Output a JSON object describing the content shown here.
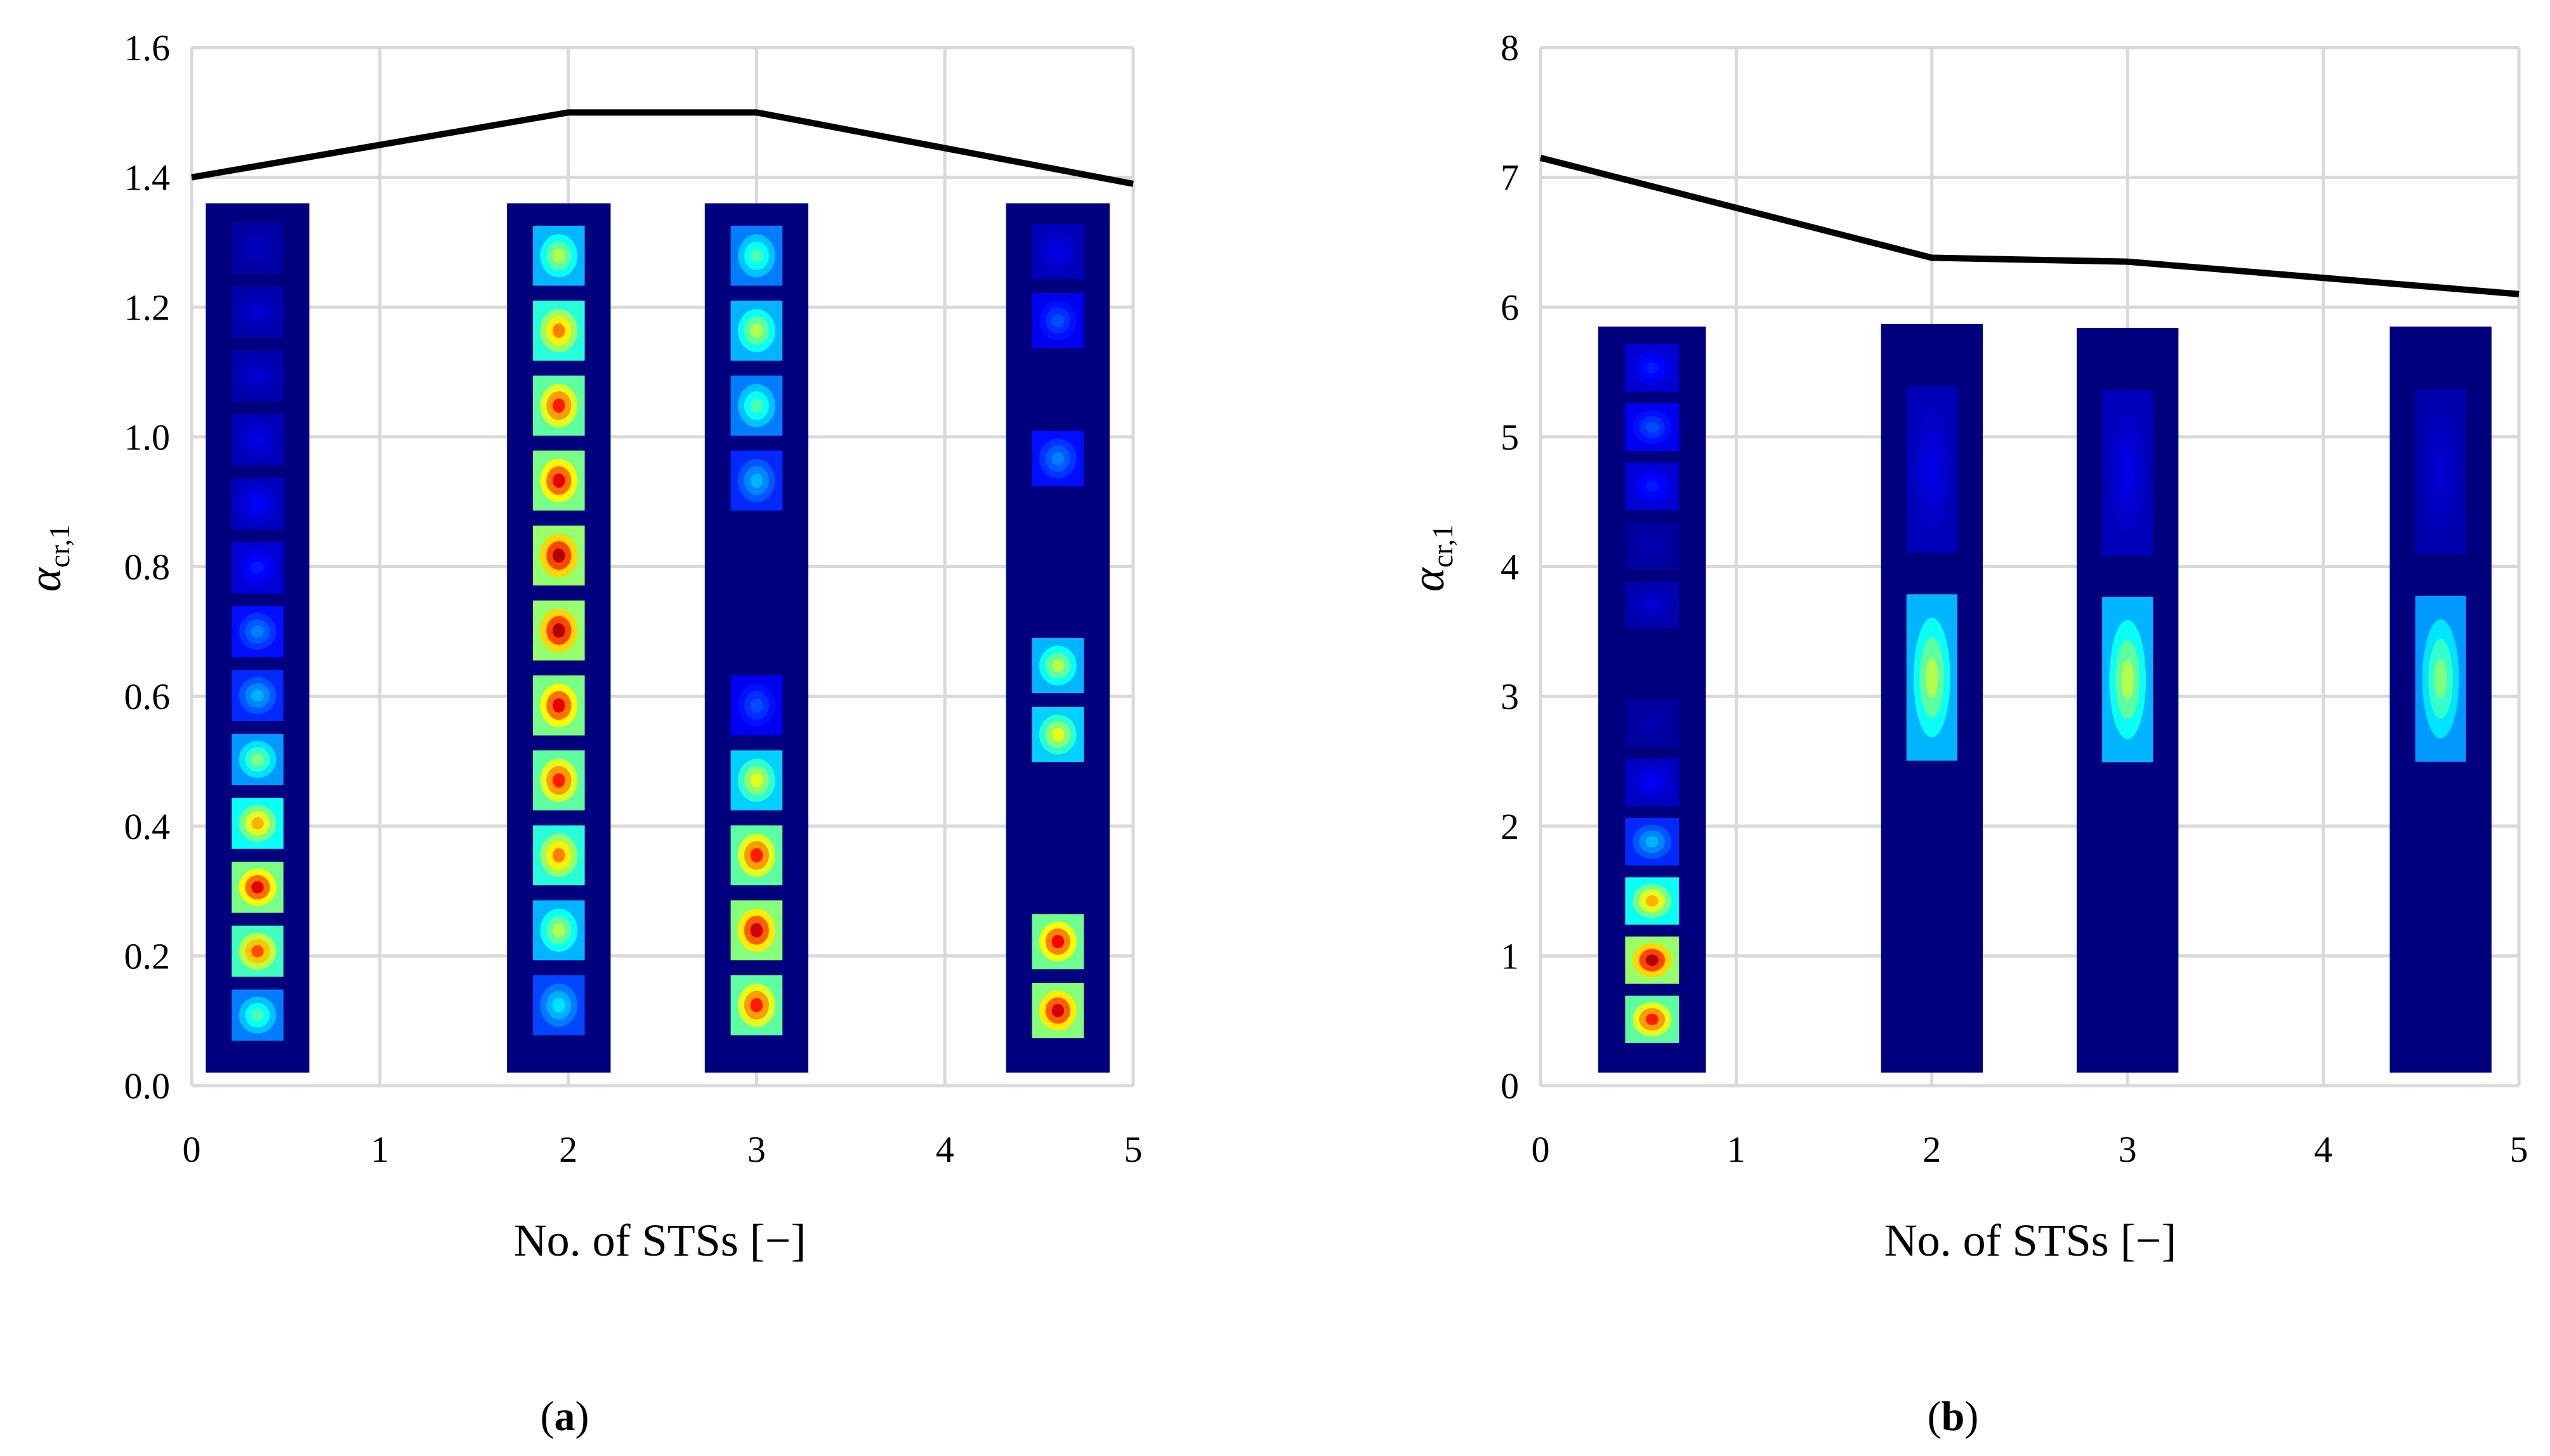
{
  "chart_data": [
    {
      "id": "a",
      "type": "line",
      "panel_label_letter": "a",
      "panel_label_open": "(",
      "panel_label_close": ")",
      "xlabel": "No. of STSs [−]",
      "ylabel_symbol": "α",
      "ylabel_subscript": "cr,1",
      "xlim": [
        0,
        5
      ],
      "ylim": [
        0,
        1.6
      ],
      "xticks": [
        "0",
        "1",
        "2",
        "3",
        "4",
        "5"
      ],
      "yticks": [
        "0.0",
        "0.2",
        "0.4",
        "0.6",
        "0.8",
        "1.0",
        "1.2",
        "1.4",
        "1.6"
      ],
      "series": [
        {
          "name": "alpha_cr,1",
          "x": [
            0,
            2,
            3,
            5
          ],
          "y": [
            1.4,
            1.5,
            1.5,
            1.39
          ]
        }
      ],
      "mode_shape_insets": [
        {
          "x_center": 0.35,
          "y_bottom": 0.02,
          "y_top": 1.36,
          "width": 0.55,
          "intensity": [
            0.45,
            0.8,
            0.9,
            0.7,
            0.5,
            0.3,
            0.25,
            0.15,
            0.12,
            0.1,
            0.08,
            0.08,
            0.06
          ]
        },
        {
          "x_center": 1.95,
          "y_bottom": 0.02,
          "y_top": 1.36,
          "width": 0.55,
          "intensity": [
            0.35,
            0.55,
            0.75,
            0.85,
            0.9,
            0.95,
            0.95,
            0.9,
            0.85,
            0.75,
            0.55
          ]
        },
        {
          "x_center": 3.0,
          "y_bottom": 0.02,
          "y_top": 1.36,
          "width": 0.55,
          "intensity": [
            0.85,
            0.92,
            0.85,
            0.6,
            0.2,
            0.0,
            0.0,
            0.3,
            0.45,
            0.55,
            0.45
          ]
        },
        {
          "x_center": 4.6,
          "y_bottom": 0.02,
          "y_top": 1.36,
          "width": 0.55,
          "intensity": [
            0.92,
            0.88,
            0.0,
            0.0,
            0.6,
            0.55,
            0.0,
            0.0,
            0.25,
            0.0,
            0.2,
            0.1
          ]
        }
      ]
    },
    {
      "id": "b",
      "type": "line",
      "panel_label_letter": "b",
      "panel_label_open": "(",
      "panel_label_close": ")",
      "xlabel": "No. of STSs [−]",
      "ylabel_symbol": "α",
      "ylabel_subscript": "cr,1",
      "xlim": [
        0,
        5
      ],
      "ylim": [
        0,
        8
      ],
      "xticks": [
        "0",
        "1",
        "2",
        "3",
        "4",
        "5"
      ],
      "yticks": [
        "0",
        "1",
        "2",
        "3",
        "4",
        "5",
        "6",
        "7",
        "8"
      ],
      "series": [
        {
          "name": "alpha_cr,1",
          "x": [
            0,
            2,
            3,
            5
          ],
          "y": [
            7.15,
            6.38,
            6.35,
            6.1
          ]
        }
      ],
      "mode_shape_insets": [
        {
          "x_center": 0.57,
          "y_bottom": 0.1,
          "y_top": 5.85,
          "width": 0.55,
          "intensity": [
            0.85,
            0.95,
            0.7,
            0.3,
            0.12,
            0.05,
            0.0,
            0.08,
            0.05,
            0.15,
            0.2,
            0.15
          ]
        },
        {
          "x_center": 2.0,
          "y_bottom": 0.1,
          "y_top": 5.87,
          "width": 0.52,
          "intensity": [
            0.0,
            0.55,
            0.1
          ]
        },
        {
          "x_center": 3.0,
          "y_bottom": 0.1,
          "y_top": 5.84,
          "width": 0.52,
          "intensity": [
            0.0,
            0.55,
            0.1
          ]
        },
        {
          "x_center": 4.6,
          "y_bottom": 0.1,
          "y_top": 5.85,
          "width": 0.52,
          "intensity": [
            0.0,
            0.5,
            0.08
          ]
        }
      ]
    }
  ]
}
